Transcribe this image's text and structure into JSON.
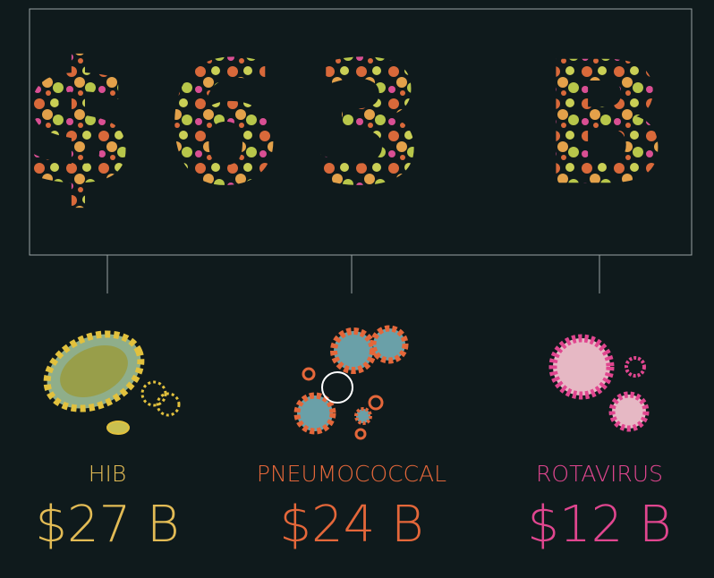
{
  "headline": "$63 B",
  "items": [
    {
      "label": "HIB",
      "amount": "$27 B",
      "color": "#e2bb55"
    },
    {
      "label": "PNEUMOCOCCAL",
      "amount": "$24 B",
      "color": "#e4673a"
    },
    {
      "label": "ROTAVIRUS",
      "amount": "$12 B",
      "color": "#e0468f"
    }
  ]
}
